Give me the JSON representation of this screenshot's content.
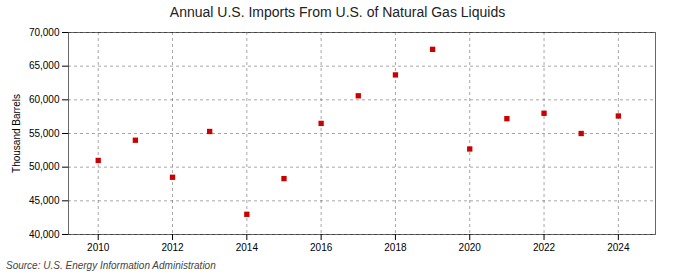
{
  "chart_data": {
    "type": "scatter",
    "title": "Annual U.S. Imports From U.S. of Natural Gas Liquids",
    "ylabel": "Thousand Barrels",
    "source": "Source: U.S. Energy Information Administration",
    "x": [
      2010,
      2011,
      2012,
      2013,
      2014,
      2015,
      2016,
      2017,
      2018,
      2019,
      2020,
      2021,
      2022,
      2023,
      2024
    ],
    "values": [
      51000,
      54000,
      48500,
      55300,
      43000,
      48300,
      56500,
      60600,
      63700,
      67500,
      52700,
      57200,
      58000,
      55000,
      57600
    ],
    "color": "#cc0000",
    "marker": "square",
    "grid": true,
    "xlim": [
      2009.2,
      2025.0
    ],
    "xticks": [
      2010,
      2012,
      2014,
      2016,
      2018,
      2020,
      2022,
      2024
    ],
    "ylim": [
      40000,
      70000
    ],
    "yticks": [
      {
        "value": 40000,
        "label": "40,000"
      },
      {
        "value": 45000,
        "label": "45,000"
      },
      {
        "value": 50000,
        "label": "50,000"
      },
      {
        "value": 55000,
        "label": "55,000"
      },
      {
        "value": 60000,
        "label": "60,000"
      },
      {
        "value": 65000,
        "label": "65,000"
      },
      {
        "value": 70000,
        "label": "70,000"
      }
    ]
  }
}
